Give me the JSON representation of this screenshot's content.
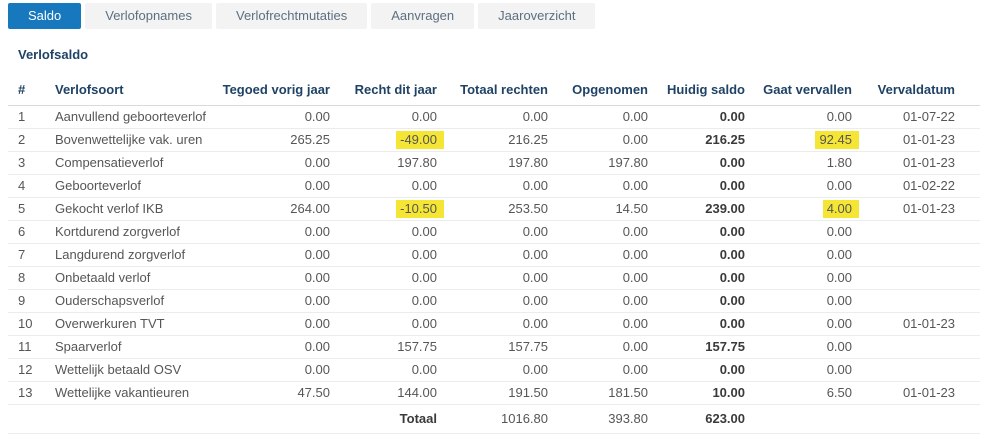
{
  "tabs": [
    {
      "label": "Saldo",
      "active": true
    },
    {
      "label": "Verlofopnames",
      "active": false
    },
    {
      "label": "Verlofrechtmutaties",
      "active": false
    },
    {
      "label": "Aanvragen",
      "active": false
    },
    {
      "label": "Jaaroverzicht",
      "active": false
    }
  ],
  "section_title": "Verlofsaldo",
  "table": {
    "columns": [
      "#",
      "Verlofsoort",
      "Tegoed vorig jaar",
      "Recht dit jaar",
      "Totaal rechten",
      "Opgenomen",
      "Huidig saldo",
      "Gaat vervallen",
      "Vervaldatum"
    ],
    "rows": [
      {
        "cells": [
          "1",
          "Aanvullend geboorteverlof",
          "0.00",
          "0.00",
          "0.00",
          "0.00",
          "0.00",
          "0.00",
          "01-07-22"
        ],
        "highlight_cols": []
      },
      {
        "cells": [
          "2",
          "Bovenwettelijke vak. uren",
          "265.25",
          "-49.00",
          "216.25",
          "0.00",
          "216.25",
          "92.45",
          "01-01-23"
        ],
        "highlight_cols": [
          3,
          7
        ]
      },
      {
        "cells": [
          "3",
          "Compensatieverlof",
          "0.00",
          "197.80",
          "197.80",
          "197.80",
          "0.00",
          "1.80",
          "01-01-23"
        ],
        "highlight_cols": []
      },
      {
        "cells": [
          "4",
          "Geboorteverlof",
          "0.00",
          "0.00",
          "0.00",
          "0.00",
          "0.00",
          "0.00",
          "01-02-22"
        ],
        "highlight_cols": []
      },
      {
        "cells": [
          "5",
          "Gekocht verlof IKB",
          "264.00",
          "-10.50",
          "253.50",
          "14.50",
          "239.00",
          "4.00",
          "01-01-23"
        ],
        "highlight_cols": [
          3,
          7
        ]
      },
      {
        "cells": [
          "6",
          "Kortdurend zorgverlof",
          "0.00",
          "0.00",
          "0.00",
          "0.00",
          "0.00",
          "0.00",
          ""
        ],
        "highlight_cols": []
      },
      {
        "cells": [
          "7",
          "Langdurend zorgverlof",
          "0.00",
          "0.00",
          "0.00",
          "0.00",
          "0.00",
          "0.00",
          ""
        ],
        "highlight_cols": []
      },
      {
        "cells": [
          "8",
          "Onbetaald verlof",
          "0.00",
          "0.00",
          "0.00",
          "0.00",
          "0.00",
          "0.00",
          ""
        ],
        "highlight_cols": []
      },
      {
        "cells": [
          "9",
          "Ouderschapsverlof",
          "0.00",
          "0.00",
          "0.00",
          "0.00",
          "0.00",
          "0.00",
          ""
        ],
        "highlight_cols": []
      },
      {
        "cells": [
          "10",
          "Overwerkuren TVT",
          "0.00",
          "0.00",
          "0.00",
          "0.00",
          "0.00",
          "0.00",
          "01-01-23"
        ],
        "highlight_cols": []
      },
      {
        "cells": [
          "11",
          "Spaarverlof",
          "0.00",
          "157.75",
          "157.75",
          "0.00",
          "157.75",
          "0.00",
          ""
        ],
        "highlight_cols": []
      },
      {
        "cells": [
          "12",
          "Wettelijk betaald OSV",
          "0.00",
          "0.00",
          "0.00",
          "0.00",
          "0.00",
          "0.00",
          ""
        ],
        "highlight_cols": []
      },
      {
        "cells": [
          "13",
          "Wettelijke vakantieuren",
          "47.50",
          "144.00",
          "191.50",
          "181.50",
          "10.00",
          "6.50",
          "01-01-23"
        ],
        "highlight_cols": []
      }
    ],
    "total": {
      "label": "Totaal",
      "totaal_rechten": "1016.80",
      "opgenomen": "393.80",
      "huidig_saldo": "623.00"
    }
  },
  "colors": {
    "accent_blue": "#1878be",
    "tab_bg": "#f3f3f3",
    "tab_text": "#5d6f80",
    "navy": "#1f4265",
    "text_gray": "#565656",
    "text_dark": "#3a3a3a",
    "highlight_yellow": "#f5e636",
    "border_light": "#ececec",
    "border_mid": "#d8dadc"
  }
}
